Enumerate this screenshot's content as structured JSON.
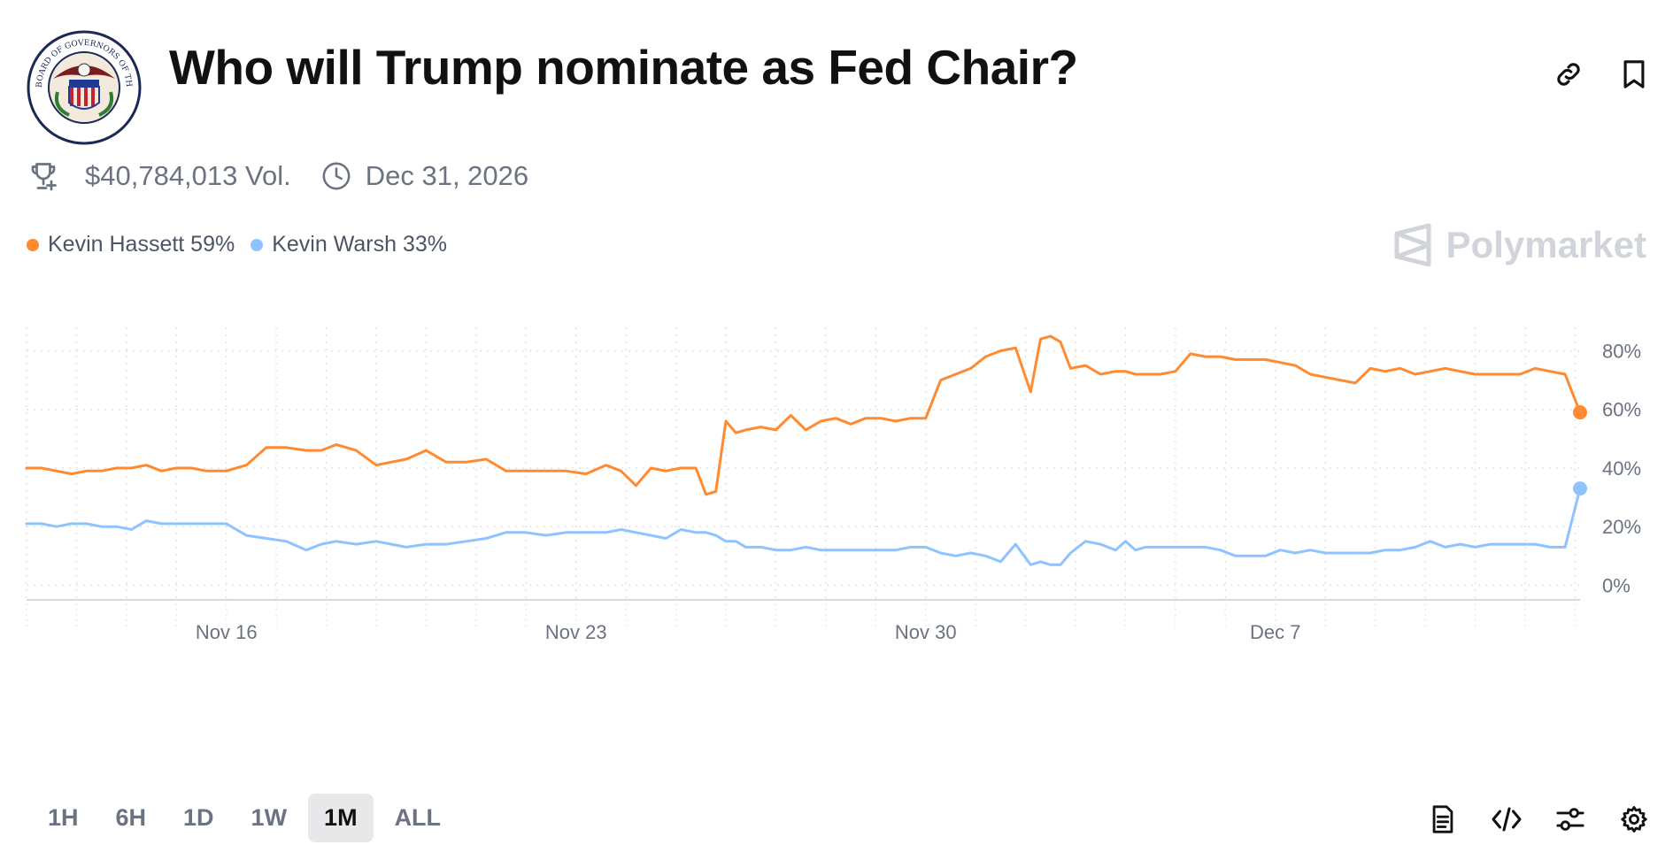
{
  "market": {
    "title": "Who will Trump nominate as Fed Chair?",
    "volume": "$40,784,013 Vol.",
    "end_date": "Dec 31, 2026",
    "logo_text": "BOARD OF GOVERNORS OF THE FEDERAL RESERVE SYSTEM"
  },
  "brand": {
    "name": "Polymarket"
  },
  "legend": [
    {
      "label": "Kevin Hassett 59%",
      "color": "#ff8a30"
    },
    {
      "label": "Kevin Warsh 33%",
      "color": "#8fc3ff"
    }
  ],
  "timeframes": [
    {
      "label": "1H",
      "active": false
    },
    {
      "label": "6H",
      "active": false
    },
    {
      "label": "1D",
      "active": false
    },
    {
      "label": "1W",
      "active": false
    },
    {
      "label": "1M",
      "active": true
    },
    {
      "label": "ALL",
      "active": false
    }
  ],
  "icons": {
    "top": [
      "link-icon",
      "bookmark-icon"
    ],
    "bottom": [
      "document-icon",
      "embed-code-icon",
      "sliders-icon",
      "settings-icon"
    ]
  },
  "chart_data": {
    "type": "line",
    "x_unit": "days since Nov 12",
    "xlim": [
      0,
      31.1
    ],
    "ylim": [
      -5,
      88
    ],
    "y_ticks": [
      0,
      20,
      40,
      60,
      80
    ],
    "y_tick_labels": [
      "0%",
      "20%",
      "40%",
      "60%",
      "80%"
    ],
    "x_ticks": [
      {
        "x": 4,
        "label": "Nov 16"
      },
      {
        "x": 11,
        "label": "Nov 23"
      },
      {
        "x": 18,
        "label": "Nov 30"
      },
      {
        "x": 25,
        "label": "Dec 7"
      }
    ],
    "grid": true,
    "series": [
      {
        "name": "Kevin Hassett",
        "color": "#ff8a30",
        "end_value": 59,
        "x": [
          0,
          0.3,
          0.6,
          0.9,
          1.2,
          1.5,
          1.8,
          2.1,
          2.4,
          2.7,
          3.0,
          3.3,
          3.6,
          4.0,
          4.4,
          4.8,
          5.2,
          5.6,
          5.9,
          6.2,
          6.6,
          7.0,
          7.3,
          7.6,
          8.0,
          8.4,
          8.8,
          9.2,
          9.6,
          10.0,
          10.4,
          10.8,
          11.2,
          11.6,
          11.9,
          12.2,
          12.5,
          12.8,
          13.1,
          13.4,
          13.6,
          13.8,
          14.0,
          14.2,
          14.4,
          14.7,
          15.0,
          15.3,
          15.6,
          15.9,
          16.2,
          16.5,
          16.8,
          17.1,
          17.4,
          17.7,
          18.0,
          18.3,
          18.6,
          18.9,
          19.2,
          19.5,
          19.8,
          20.1,
          20.3,
          20.5,
          20.7,
          20.9,
          21.2,
          21.5,
          21.8,
          22.0,
          22.2,
          22.4,
          22.7,
          23.0,
          23.3,
          23.6,
          23.9,
          24.2,
          24.5,
          24.8,
          25.1,
          25.4,
          25.7,
          26.0,
          26.3,
          26.6,
          26.9,
          27.2,
          27.5,
          27.8,
          28.1,
          28.4,
          28.7,
          29.0,
          29.3,
          29.6,
          29.9,
          30.2,
          30.5,
          30.8,
          31.1
        ],
        "values": [
          40,
          40,
          39,
          38,
          39,
          39,
          40,
          40,
          41,
          39,
          40,
          40,
          39,
          39,
          41,
          47,
          47,
          46,
          46,
          48,
          46,
          41,
          42,
          43,
          46,
          42,
          42,
          43,
          39,
          39,
          39,
          39,
          38,
          41,
          39,
          34,
          40,
          39,
          40,
          40,
          31,
          32,
          56,
          52,
          53,
          54,
          53,
          58,
          53,
          56,
          57,
          55,
          57,
          57,
          56,
          57,
          57,
          70,
          72,
          74,
          78,
          80,
          81,
          66,
          84,
          85,
          83,
          74,
          75,
          72,
          73,
          73,
          72,
          72,
          72,
          73,
          79,
          78,
          78,
          77,
          77,
          77,
          76,
          75,
          72,
          71,
          70,
          69,
          74,
          73,
          74,
          72,
          73,
          74,
          73,
          72,
          72,
          72,
          72,
          74,
          73,
          72,
          59
        ]
      },
      {
        "name": "Kevin Warsh",
        "color": "#8fc3ff",
        "end_value": 33,
        "x": [
          0,
          0.3,
          0.6,
          0.9,
          1.2,
          1.5,
          1.8,
          2.1,
          2.4,
          2.7,
          3.0,
          3.3,
          3.6,
          4.0,
          4.4,
          4.8,
          5.2,
          5.6,
          5.9,
          6.2,
          6.6,
          7.0,
          7.3,
          7.6,
          8.0,
          8.4,
          8.8,
          9.2,
          9.6,
          10.0,
          10.4,
          10.8,
          11.2,
          11.6,
          11.9,
          12.2,
          12.5,
          12.8,
          13.1,
          13.4,
          13.6,
          13.8,
          14.0,
          14.2,
          14.4,
          14.7,
          15.0,
          15.3,
          15.6,
          15.9,
          16.2,
          16.5,
          16.8,
          17.1,
          17.4,
          17.7,
          18.0,
          18.3,
          18.6,
          18.9,
          19.2,
          19.5,
          19.8,
          20.1,
          20.3,
          20.5,
          20.7,
          20.9,
          21.2,
          21.5,
          21.8,
          22.0,
          22.2,
          22.4,
          22.7,
          23.0,
          23.3,
          23.6,
          23.9,
          24.2,
          24.5,
          24.8,
          25.1,
          25.4,
          25.7,
          26.0,
          26.3,
          26.6,
          26.9,
          27.2,
          27.5,
          27.8,
          28.1,
          28.4,
          28.7,
          29.0,
          29.3,
          29.6,
          29.9,
          30.2,
          30.5,
          30.8,
          31.1
        ],
        "values": [
          21,
          21,
          20,
          21,
          21,
          20,
          20,
          19,
          22,
          21,
          21,
          21,
          21,
          21,
          17,
          16,
          15,
          12,
          14,
          15,
          14,
          15,
          14,
          13,
          14,
          14,
          15,
          16,
          18,
          18,
          17,
          18,
          18,
          18,
          19,
          18,
          17,
          16,
          19,
          18,
          18,
          17,
          15,
          15,
          13,
          13,
          12,
          12,
          13,
          12,
          12,
          12,
          12,
          12,
          12,
          13,
          13,
          11,
          10,
          11,
          10,
          8,
          14,
          7,
          8,
          7,
          7,
          11,
          15,
          14,
          12,
          15,
          12,
          13,
          13,
          13,
          13,
          13,
          12,
          10,
          10,
          10,
          12,
          11,
          12,
          11,
          11,
          11,
          11,
          12,
          12,
          13,
          15,
          13,
          14,
          13,
          14,
          14,
          14,
          14,
          13,
          13,
          33
        ]
      }
    ]
  }
}
